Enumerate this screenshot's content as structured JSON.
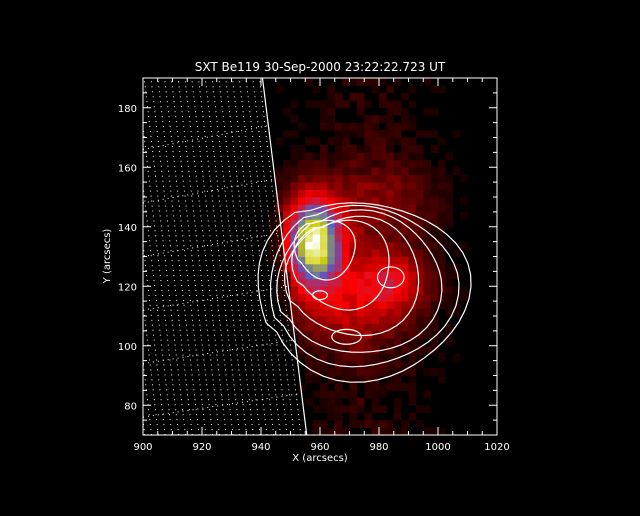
{
  "chart_data": {
    "type": "heatmap",
    "title": "SXT Be119 30-Sep-2000 23:22:22.723 UT",
    "xlabel": "X (arcsecs)",
    "ylabel": "Y (arcsecs)",
    "xlim": [
      900,
      1020
    ],
    "ylim": [
      70,
      190
    ],
    "x_ticks": [
      900,
      920,
      940,
      960,
      980,
      1000,
      1020
    ],
    "y_ticks": [
      80,
      100,
      120,
      140,
      160,
      180
    ],
    "grid": "dotted heliographic grid on solar disk",
    "limb": {
      "x_top": 940.5,
      "y_top": 190,
      "x_bottom": 955.5,
      "y_bottom": 70
    },
    "colormap": [
      "#000000",
      "#ff0000",
      "#5060d0",
      "#d0d000",
      "#ffffff"
    ],
    "source": {
      "peak_x": 958,
      "peak_y": 135,
      "peak_intensity": 1.0
    },
    "blobs": [
      {
        "x": 958,
        "y": 135,
        "sx": 7,
        "sy": 11,
        "intensity": 1.0
      },
      {
        "x": 984,
        "y": 122,
        "sx": 9,
        "sy": 7,
        "intensity": 0.35
      },
      {
        "x": 970,
        "y": 112,
        "sx": 14,
        "sy": 10,
        "intensity": 0.25
      },
      {
        "x": 982,
        "y": 148,
        "sx": 12,
        "sy": 10,
        "intensity": 0.18
      }
    ],
    "contours": [
      {
        "level": 1,
        "cx": 975,
        "cy": 120,
        "rx": 35,
        "ry": 30
      },
      {
        "level": 2,
        "cx": 975,
        "cy": 121,
        "rx": 31,
        "ry": 27
      },
      {
        "level": 3,
        "cx": 974,
        "cy": 122,
        "rx": 27,
        "ry": 24
      },
      {
        "level": 4,
        "cx": 972,
        "cy": 124,
        "rx": 22,
        "ry": 20
      },
      {
        "level": 5,
        "cx": 968,
        "cy": 128,
        "rx": 16,
        "ry": 15
      },
      {
        "level": 6,
        "cx": 962,
        "cy": 133,
        "rx": 10,
        "ry": 10
      }
    ],
    "inner_contours": [
      {
        "cx": 984,
        "cy": 123,
        "rx": 4.5,
        "ry": 3.5
      },
      {
        "cx": 969,
        "cy": 103,
        "rx": 5,
        "ry": 2.5
      },
      {
        "cx": 960,
        "cy": 117,
        "rx": 2.5,
        "ry": 1.5
      }
    ]
  }
}
